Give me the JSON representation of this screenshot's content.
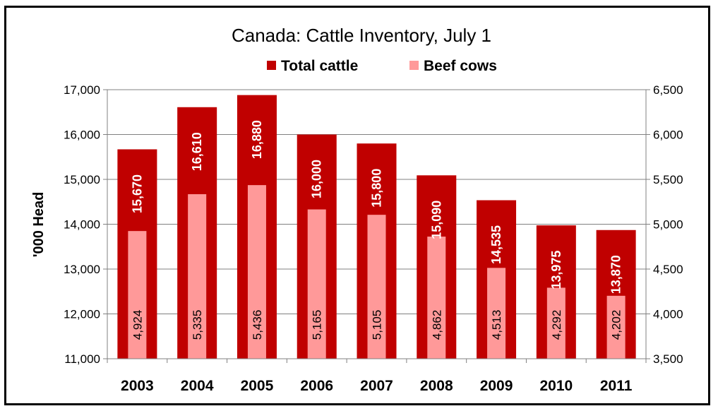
{
  "chart_data": {
    "type": "bar",
    "title": "Canada: Cattle Inventory, July 1",
    "ylabel": "'000 Head",
    "categories": [
      "2003",
      "2004",
      "2005",
      "2006",
      "2007",
      "2008",
      "2009",
      "2010",
      "2011"
    ],
    "series": [
      {
        "name": "Total cattle",
        "axis": "left",
        "color": "#C00000",
        "values": [
          15670,
          16610,
          16880,
          16000,
          15800,
          15090,
          14535,
          13975,
          13870
        ],
        "labels": [
          "15,670",
          "16,610",
          "16,880",
          "16,000",
          "15,800",
          "15,090",
          "14,535",
          "13,975",
          "13,870"
        ]
      },
      {
        "name": "Beef cows",
        "axis": "right",
        "color": "#FF9999",
        "values": [
          4924,
          5335,
          5436,
          5165,
          5105,
          4862,
          4513,
          4292,
          4202
        ],
        "labels": [
          "4,924",
          "5,335",
          "5,436",
          "5,165",
          "5,105",
          "4,862",
          "4,513",
          "4,292",
          "4,202"
        ]
      }
    ],
    "y_left": {
      "lim": [
        11000,
        17000
      ],
      "ticks": [
        11000,
        12000,
        13000,
        14000,
        15000,
        16000,
        17000
      ],
      "tick_labels": [
        "11,000",
        "12,000",
        "13,000",
        "14,000",
        "15,000",
        "16,000",
        "17,000"
      ]
    },
    "y_right": {
      "lim": [
        3500,
        6500
      ],
      "ticks": [
        3500,
        4000,
        4500,
        5000,
        5500,
        6000,
        6500
      ],
      "tick_labels": [
        "3,500",
        "4,000",
        "4,500",
        "5,000",
        "5,500",
        "6,000",
        "6,500"
      ]
    },
    "grid": true,
    "legend_position": "top"
  }
}
